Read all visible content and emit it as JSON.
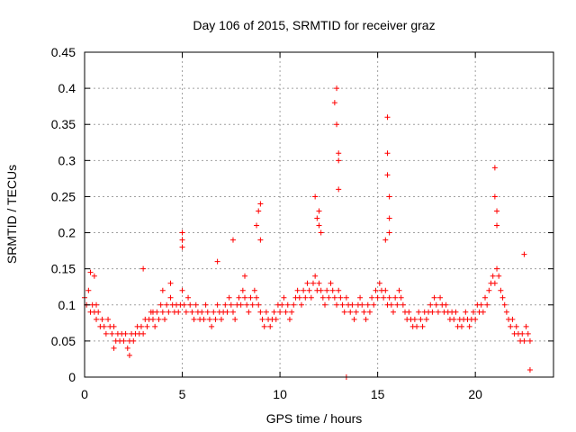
{
  "chart_data": {
    "type": "scatter",
    "title": "Day 106 of 2015, SRMTID for receiver graz",
    "xlabel": "GPS time / hours",
    "ylabel": "SRMTID / TECUs",
    "xlim": [
      0,
      24
    ],
    "ylim": [
      0,
      0.45
    ],
    "xticks": [
      0,
      5,
      10,
      15,
      20
    ],
    "xtick_labels": [
      "0",
      "5",
      "10",
      "15",
      "20"
    ],
    "yticks": [
      0,
      0.05,
      0.1,
      0.15,
      0.2,
      0.25,
      0.3,
      0.35,
      0.4,
      0.45
    ],
    "ytick_labels": [
      "0",
      "0.05",
      "0.1",
      "0.15",
      "0.2",
      "0.25",
      "0.3",
      "0.35",
      "0.4",
      "0.45"
    ],
    "grid": true,
    "marker": "plus",
    "color": "#ff0000",
    "series": [
      {
        "name": "SRMTID graz",
        "x": [
          0.0,
          0.1,
          0.2,
          0.3,
          0.4,
          0.5,
          0.6,
          0.7,
          0.8,
          0.9,
          1.0,
          1.1,
          1.2,
          1.3,
          1.4,
          1.5,
          1.6,
          1.7,
          1.8,
          1.9,
          2.0,
          2.1,
          2.2,
          2.3,
          2.4,
          2.5,
          2.6,
          2.7,
          2.8,
          2.9,
          3.0,
          3.1,
          3.2,
          3.3,
          3.4,
          3.5,
          3.6,
          3.7,
          3.8,
          3.9,
          4.0,
          4.1,
          4.2,
          4.3,
          4.4,
          4.5,
          4.6,
          4.7,
          4.8,
          4.9,
          5.0,
          5.1,
          5.2,
          5.3,
          5.4,
          5.5,
          5.6,
          5.7,
          5.8,
          5.9,
          6.0,
          6.1,
          6.2,
          6.3,
          6.4,
          6.5,
          6.6,
          6.7,
          6.8,
          6.9,
          7.0,
          7.1,
          7.2,
          7.3,
          7.4,
          7.5,
          7.6,
          7.7,
          7.8,
          7.9,
          8.0,
          8.1,
          8.2,
          8.3,
          8.4,
          8.5,
          8.6,
          8.7,
          8.8,
          8.9,
          9.0,
          9.1,
          9.2,
          9.3,
          9.4,
          9.5,
          9.6,
          9.7,
          9.8,
          9.9,
          10.0,
          10.1,
          10.2,
          10.3,
          10.4,
          10.5,
          10.6,
          10.7,
          10.8,
          10.9,
          11.0,
          11.1,
          11.2,
          11.3,
          11.4,
          11.5,
          11.6,
          11.7,
          11.8,
          11.9,
          12.0,
          12.1,
          12.2,
          12.3,
          12.4,
          12.5,
          12.6,
          12.7,
          12.8,
          12.9,
          13.0,
          13.1,
          13.2,
          13.3,
          13.4,
          13.5,
          13.6,
          13.7,
          13.8,
          13.9,
          14.0,
          14.1,
          14.2,
          14.3,
          14.4,
          14.5,
          14.6,
          14.7,
          14.8,
          14.9,
          15.0,
          15.1,
          15.2,
          15.3,
          15.4,
          15.5,
          15.6,
          15.7,
          15.8,
          15.9,
          16.0,
          16.1,
          16.2,
          16.3,
          16.4,
          16.5,
          16.6,
          16.7,
          16.8,
          16.9,
          17.0,
          17.1,
          17.2,
          17.3,
          17.4,
          17.5,
          17.6,
          17.7,
          17.8,
          17.9,
          18.0,
          18.1,
          18.2,
          18.3,
          18.4,
          18.5,
          18.6,
          18.7,
          18.8,
          18.9,
          19.0,
          19.1,
          19.2,
          19.3,
          19.4,
          19.5,
          19.6,
          19.7,
          19.8,
          19.9,
          20.0,
          20.1,
          20.2,
          20.3,
          20.4,
          20.5,
          20.6,
          20.7,
          20.8,
          20.9,
          21.0,
          21.1,
          21.2,
          21.3,
          21.4,
          21.5,
          21.6,
          21.7,
          21.8,
          21.9,
          22.0,
          22.1,
          22.2,
          22.3,
          22.4,
          22.5,
          22.6,
          22.7,
          22.8,
          0.3,
          0.5,
          0.6,
          1.5,
          2.3,
          3.0,
          3.5,
          4.0,
          4.4,
          5.0,
          5.0,
          5.0,
          6.8,
          7.6,
          8.2,
          8.8,
          8.9,
          9.0,
          9.0,
          11.8,
          11.9,
          12.0,
          12.0,
          12.1,
          12.8,
          12.9,
          12.9,
          13.0,
          13.0,
          13.0,
          13.4,
          15.4,
          15.5,
          15.5,
          15.5,
          15.6,
          15.6,
          15.6,
          21.0,
          21.0,
          21.1,
          21.1,
          22.5,
          22.8
        ],
        "y": [
          0.11,
          0.1,
          0.12,
          0.09,
          0.1,
          0.09,
          0.08,
          0.09,
          0.07,
          0.08,
          0.07,
          0.06,
          0.08,
          0.07,
          0.06,
          0.07,
          0.05,
          0.06,
          0.05,
          0.06,
          0.05,
          0.06,
          0.04,
          0.05,
          0.06,
          0.05,
          0.06,
          0.07,
          0.06,
          0.07,
          0.06,
          0.08,
          0.07,
          0.08,
          0.09,
          0.08,
          0.07,
          0.09,
          0.08,
          0.1,
          0.09,
          0.08,
          0.1,
          0.09,
          0.11,
          0.1,
          0.09,
          0.1,
          0.09,
          0.1,
          0.12,
          0.1,
          0.09,
          0.11,
          0.1,
          0.09,
          0.08,
          0.1,
          0.09,
          0.08,
          0.09,
          0.08,
          0.1,
          0.09,
          0.08,
          0.07,
          0.09,
          0.08,
          0.1,
          0.09,
          0.08,
          0.09,
          0.1,
          0.09,
          0.11,
          0.1,
          0.09,
          0.08,
          0.1,
          0.11,
          0.1,
          0.12,
          0.11,
          0.1,
          0.09,
          0.11,
          0.1,
          0.12,
          0.11,
          0.1,
          0.09,
          0.08,
          0.07,
          0.09,
          0.08,
          0.07,
          0.08,
          0.09,
          0.08,
          0.1,
          0.09,
          0.1,
          0.11,
          0.09,
          0.1,
          0.08,
          0.09,
          0.1,
          0.11,
          0.12,
          0.11,
          0.1,
          0.12,
          0.11,
          0.13,
          0.12,
          0.11,
          0.13,
          0.14,
          0.12,
          0.13,
          0.12,
          0.11,
          0.1,
          0.12,
          0.11,
          0.13,
          0.12,
          0.11,
          0.1,
          0.12,
          0.11,
          0.1,
          0.09,
          0.11,
          0.1,
          0.09,
          0.1,
          0.08,
          0.09,
          0.1,
          0.11,
          0.1,
          0.09,
          0.08,
          0.1,
          0.09,
          0.11,
          0.1,
          0.12,
          0.11,
          0.13,
          0.12,
          0.11,
          0.12,
          0.1,
          0.11,
          0.1,
          0.09,
          0.11,
          0.1,
          0.12,
          0.11,
          0.1,
          0.09,
          0.08,
          0.09,
          0.08,
          0.07,
          0.08,
          0.07,
          0.09,
          0.08,
          0.07,
          0.09,
          0.08,
          0.09,
          0.1,
          0.09,
          0.11,
          0.1,
          0.09,
          0.11,
          0.1,
          0.09,
          0.1,
          0.09,
          0.08,
          0.09,
          0.08,
          0.09,
          0.07,
          0.08,
          0.07,
          0.08,
          0.09,
          0.08,
          0.07,
          0.08,
          0.09,
          0.08,
          0.1,
          0.09,
          0.1,
          0.09,
          0.11,
          0.1,
          0.12,
          0.13,
          0.14,
          0.13,
          0.15,
          0.14,
          0.12,
          0.11,
          0.1,
          0.09,
          0.08,
          0.07,
          0.08,
          0.06,
          0.07,
          0.06,
          0.05,
          0.06,
          0.05,
          0.07,
          0.06,
          0.05,
          0.145,
          0.14,
          0.1,
          0.04,
          0.03,
          0.15,
          0.09,
          0.12,
          0.13,
          0.2,
          0.19,
          0.18,
          0.16,
          0.19,
          0.14,
          0.21,
          0.23,
          0.24,
          0.19,
          0.25,
          0.22,
          0.23,
          0.21,
          0.2,
          0.38,
          0.4,
          0.35,
          0.31,
          0.3,
          0.26,
          0.0,
          0.19,
          0.36,
          0.31,
          0.28,
          0.25,
          0.22,
          0.2,
          0.29,
          0.25,
          0.23,
          0.21,
          0.17,
          0.01
        ]
      }
    ]
  }
}
